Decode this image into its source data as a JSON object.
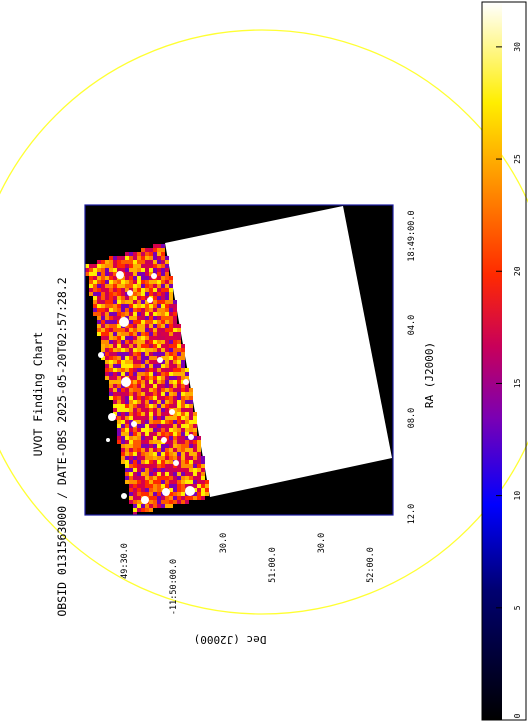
{
  "chart": {
    "title": "UVOT Finding Chart",
    "subtitle": "OBSID 0131563000 / DATE-OBS 2025-05-20T02:57:28.2",
    "xlabel": "RA (J2000)",
    "ylabel": "Dec (J2000)",
    "ra_ticks": [
      "18:49:00.0",
      "04.0",
      "08.0",
      "12.0"
    ],
    "dec_ticks": [
      "49:30.0",
      "-11:50:00.0",
      "30.0",
      "51:00.0",
      "30.0",
      "52:00.0"
    ]
  },
  "colorbar": {
    "ticks": [
      "0",
      "5",
      "10",
      "15",
      "20",
      "25",
      "30"
    ],
    "range": [
      0,
      32
    ]
  },
  "colors": {
    "frame": "#1a1aa0",
    "circle": "#ffff33",
    "saturated": "#ffffff",
    "background": "#000000",
    "noise_dark": "#b0004a",
    "noise_mid": "#ff3a10",
    "noise_bright": "#ffd000"
  }
}
